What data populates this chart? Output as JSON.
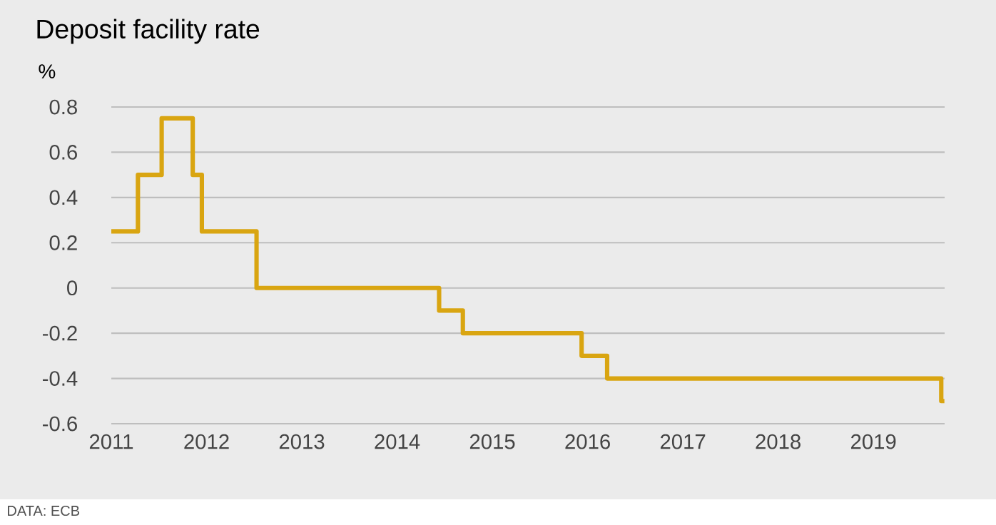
{
  "chart_data": {
    "type": "step",
    "title": "Deposit facility rate",
    "ylabel": "%",
    "annotations": [
      "DATA: ECB"
    ],
    "x": [
      "2011-01-01",
      "2011-04-13",
      "2011-07-13",
      "2011-11-09",
      "2011-12-14",
      "2012-07-11",
      "2014-06-11",
      "2014-09-10",
      "2015-12-09",
      "2016-03-16",
      "2019-09-18",
      "2019-09-30"
    ],
    "series": [
      {
        "color": "#d9a511",
        "values": [
          0.25,
          0.5,
          0.75,
          0.5,
          0.25,
          0,
          -0.1,
          -0.2,
          -0.3,
          -0.4,
          -0.5,
          -0.5
        ]
      }
    ],
    "xlim": [
      "2011",
      "2019-10"
    ],
    "xticks": [
      "2011",
      "2012",
      "2013",
      "2014",
      "2015",
      "2016",
      "2017",
      "2018",
      "2019"
    ],
    "ylim": [
      -0.6,
      0.8
    ],
    "yticks": [
      -0.6,
      -0.4,
      -0.2,
      0,
      0.2,
      0.4,
      0.6,
      0.8
    ],
    "grid": "y",
    "line_style": "solid"
  }
}
